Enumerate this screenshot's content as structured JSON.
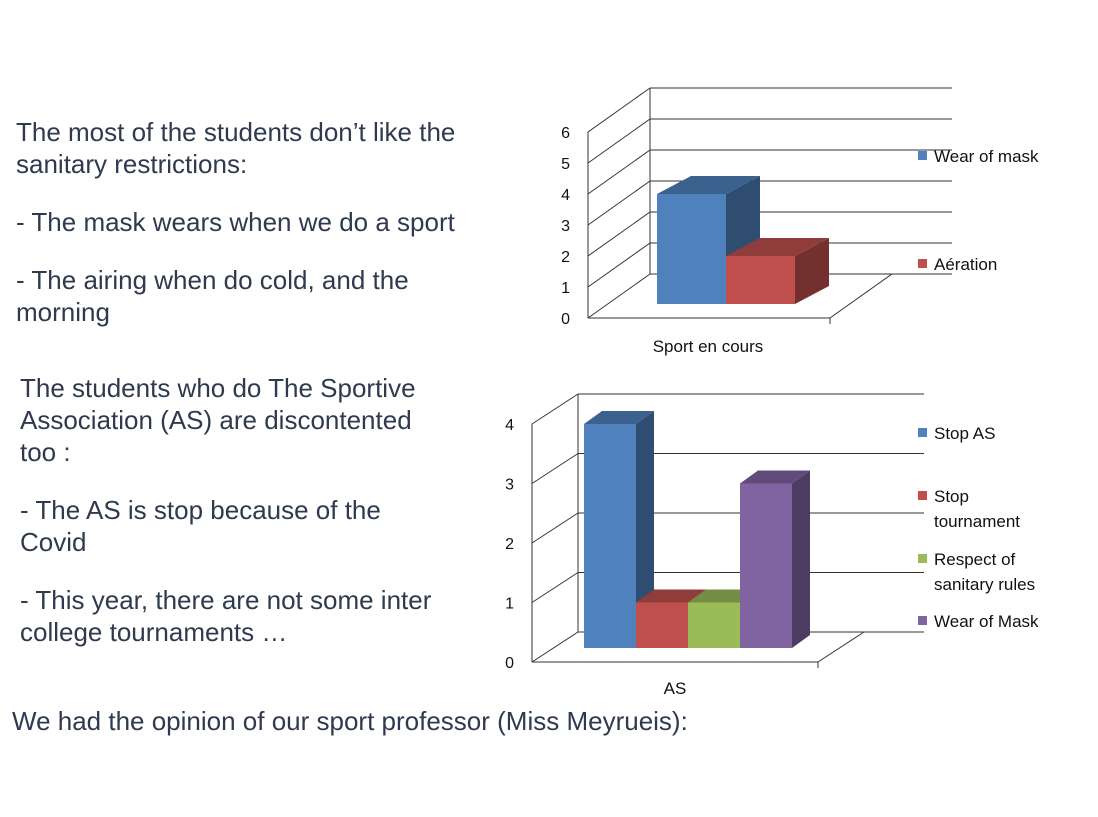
{
  "text": {
    "block1": {
      "line1": "The most of the students don’t like the",
      "line2": "sanitary restrictions:",
      "bullet1": "- The mask wears when we do a sport",
      "bullet2a": "- The airing when do cold, and the",
      "bullet2b": "morning"
    },
    "block2": {
      "line1": "The students who do The Sportive",
      "line2": "Association (AS) are discontented",
      "line3": "too :",
      "bullet1a": "- The AS is stop because of the",
      "bullet1b": "Covid",
      "bullet2a": "- This year, there are not some inter",
      "bullet2b": "college tournaments …"
    },
    "bottom": "We had the opinion of our sport professor (Miss Meyrueis):"
  },
  "chart_data": [
    {
      "type": "bar",
      "categories": [
        "Sport en cours"
      ],
      "series": [
        {
          "name": "Wear of mask",
          "values": [
            4
          ],
          "color": "#4f81bd"
        },
        {
          "name": "Aération",
          "values": [
            2
          ],
          "color": "#c0504d"
        }
      ],
      "ylim": [
        0,
        6
      ],
      "yticks": [
        "0",
        "1",
        "2",
        "3",
        "4",
        "5",
        "6"
      ],
      "grid": true,
      "legend": "right"
    },
    {
      "type": "bar",
      "categories": [
        "AS"
      ],
      "series": [
        {
          "name": "Stop AS",
          "values": [
            4
          ],
          "color": "#4f81bd"
        },
        {
          "name": "Stop tournament",
          "values": [
            1
          ],
          "color": "#c0504d"
        },
        {
          "name": "Respect of sanitary rules",
          "values": [
            1
          ],
          "color": "#9bbb59"
        },
        {
          "name": "Wear of Mask",
          "values": [
            3
          ],
          "color": "#8064a2"
        }
      ],
      "ylim": [
        0,
        4
      ],
      "yticks": [
        "0",
        "1",
        "2",
        "3",
        "4"
      ],
      "grid": true,
      "legend": "right"
    }
  ]
}
